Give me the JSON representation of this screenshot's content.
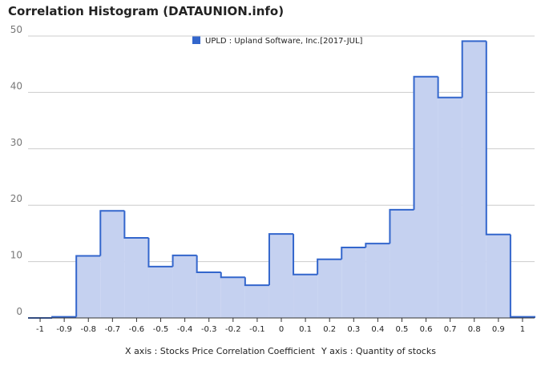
{
  "chart_data": {
    "type": "histogram",
    "title": "Correlation Histogram (DATAUNION.info)",
    "xlabel": "X axis : Stocks Price Correlation Coefficient",
    "ylabel": "Y axis : Quantity of stocks",
    "series_name": "UPLD : Upland Software, Inc.[2017-JUL]",
    "color": "#3366cc",
    "fill": "#c5d1f0",
    "bins": [
      -1.05,
      -0.95,
      -0.85,
      -0.75,
      -0.65,
      -0.55,
      -0.45,
      -0.35,
      -0.25,
      -0.15,
      -0.05,
      0.05,
      0.15,
      0.25,
      0.35,
      0.45,
      0.55,
      0.65,
      0.75,
      0.85,
      0.95,
      1.05
    ],
    "values": [
      0,
      0.2,
      11,
      19,
      14.2,
      9.1,
      11.1,
      8.1,
      7.2,
      5.8,
      14.9,
      7.7,
      10.4,
      12.5,
      13.2,
      19.2,
      42.8,
      39.1,
      49.1,
      14.8,
      0.2
    ],
    "xlim": [
      -1.05,
      1.05
    ],
    "xticks": [
      -1,
      -0.9,
      -0.8,
      -0.7,
      -0.6,
      -0.5,
      -0.4,
      -0.3,
      -0.2,
      -0.1,
      0,
      0.1,
      0.2,
      0.3,
      0.4,
      0.5,
      0.6,
      0.7,
      0.8,
      0.9,
      1
    ],
    "ylim": [
      0,
      50
    ],
    "yticks": [
      0,
      10,
      20,
      30,
      40,
      50
    ],
    "grid": true
  }
}
